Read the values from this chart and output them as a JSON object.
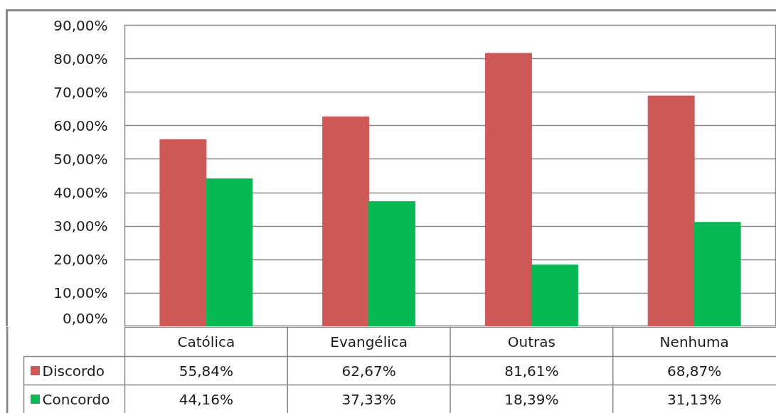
{
  "chart_data": {
    "type": "bar",
    "categories": [
      "Católica",
      "Evangélica",
      "Outras",
      "Nenhuma"
    ],
    "series": [
      {
        "name": "Discordo",
        "color": "#cd5856",
        "values": [
          55.84,
          62.67,
          81.61,
          68.87
        ],
        "value_labels": [
          "55,84%",
          "62,67%",
          "81,61%",
          "68,87%"
        ]
      },
      {
        "name": "Concordo",
        "color": "#06b955",
        "values": [
          44.16,
          37.33,
          18.39,
          31.13
        ],
        "value_labels": [
          "44,16%",
          "37,33%",
          "18,39%",
          "31,13%"
        ]
      }
    ],
    "ylim": [
      0,
      90
    ],
    "yticks": [
      {
        "value": 0,
        "label": "0,00%"
      },
      {
        "value": 10,
        "label": "10,00%"
      },
      {
        "value": 20,
        "label": "20,00%"
      },
      {
        "value": 30,
        "label": "30,00%"
      },
      {
        "value": 40,
        "label": "40,00%"
      },
      {
        "value": 50,
        "label": "50,00%"
      },
      {
        "value": 60,
        "label": "60,00%"
      },
      {
        "value": 70,
        "label": "70,00%"
      },
      {
        "value": 80,
        "label": "80,00%"
      },
      {
        "value": 90,
        "label": "90,00%"
      }
    ],
    "grid": "y",
    "legend": "bottom left"
  }
}
